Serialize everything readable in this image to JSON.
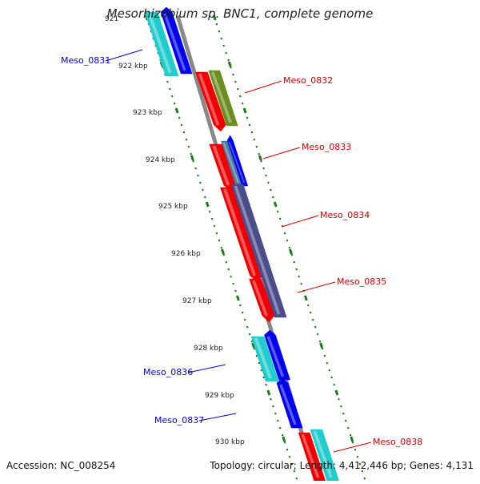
{
  "title": "Mesorhizobium sp. BNC1, complete genome",
  "footer": {
    "accession": "Accession: NC_008254",
    "summary": "Topology: circular; Length: 4,412,446 bp; Genes: 4,131"
  },
  "scale_labels": [
    "921",
    "922 kbp",
    "923 kbp",
    "924 kbp",
    "925 kbp",
    "926 kbp",
    "927 kbp",
    "928 kbp",
    "929 kbp",
    "930 kbp"
  ],
  "genes": [
    {
      "name": "Meso_0831",
      "color": "#0000cc"
    },
    {
      "name": "Meso_0832",
      "color": "#cc0000"
    },
    {
      "name": "Meso_0833",
      "color": "#cc0000"
    },
    {
      "name": "Meso_0834",
      "color": "#cc0000"
    },
    {
      "name": "Meso_0835",
      "color": "#cc0000"
    },
    {
      "name": "Meso_0836",
      "color": "#0000cc"
    },
    {
      "name": "Meso_0837",
      "color": "#0000cc"
    },
    {
      "name": "Meso_0838",
      "color": "#cc0000"
    }
  ],
  "colors": {
    "backbone": "#888888",
    "ticks": "#1a7a1a",
    "blue_gene": "#0000ee",
    "red_gene": "#ee0000",
    "cyan_gene": "#22cccc",
    "olive_gene": "#6b8e23",
    "purple_gene": "#4b4c8a",
    "steel_gene": "#4a7aa0"
  }
}
